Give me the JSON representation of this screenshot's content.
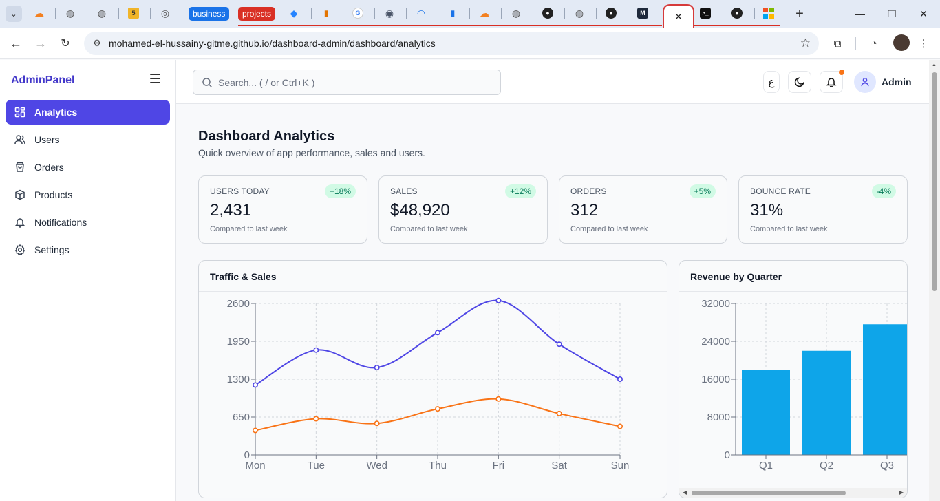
{
  "browser": {
    "tab_groups": [
      {
        "label": "business",
        "color": "#1a73e8"
      },
      {
        "label": "projects",
        "color": "#d93025"
      }
    ],
    "active_tab_close": "✕",
    "url": "mohamed-el-hussainy-gitme.github.io/dashboard-admin/dashboard/analytics"
  },
  "app": {
    "brand": "AdminPanel",
    "nav": [
      {
        "label": "Analytics",
        "icon": "grid-icon",
        "active": true
      },
      {
        "label": "Users",
        "icon": "users-icon"
      },
      {
        "label": "Orders",
        "icon": "shopping-bag-icon"
      },
      {
        "label": "Products",
        "icon": "box-icon"
      },
      {
        "label": "Notifications",
        "icon": "bell-icon"
      },
      {
        "label": "Settings",
        "icon": "gear-icon"
      }
    ],
    "search_placeholder": "Search... ( / or Ctrl+K )",
    "lang_button": "ع",
    "user_name": "Admin"
  },
  "page": {
    "title": "Dashboard Analytics",
    "subtitle": "Quick overview of app performance, sales and users."
  },
  "stats": [
    {
      "label": "USERS TODAY",
      "value": "2,431",
      "badge": "+18%",
      "note": "Compared to last week"
    },
    {
      "label": "SALES",
      "value": "$48,920",
      "badge": "+12%",
      "note": "Compared to last week"
    },
    {
      "label": "ORDERS",
      "value": "312",
      "badge": "+5%",
      "note": "Compared to last week"
    },
    {
      "label": "BOUNCE RATE",
      "value": "31%",
      "badge": "-4%",
      "note": "Compared to last week"
    }
  ],
  "colors": {
    "accent": "#4f46e5",
    "traffic": "#4f46e5",
    "sales": "#f97316",
    "bars": "#0ea5e9"
  },
  "chart_data": [
    {
      "type": "line",
      "title": "Traffic & Sales",
      "categories": [
        "Mon",
        "Tue",
        "Wed",
        "Thu",
        "Fri",
        "Sat",
        "Sun"
      ],
      "series": [
        {
          "values": [
            1200,
            1800,
            1500,
            2100,
            2650,
            1900,
            1300
          ],
          "color": "#4f46e5"
        },
        {
          "values": [
            420,
            620,
            540,
            790,
            960,
            710,
            490
          ],
          "color": "#f97316"
        }
      ],
      "yticks": [
        "0",
        "650",
        "1300",
        "1950",
        "2600"
      ],
      "ylim": [
        0,
        2600
      ],
      "grid": true
    },
    {
      "type": "bar",
      "title": "Revenue by Quarter",
      "categories": [
        "Q1",
        "Q2",
        "Q3"
      ],
      "values": [
        18000,
        22000,
        27600
      ],
      "yticks": [
        "0",
        "8000",
        "16000",
        "24000",
        "32000"
      ],
      "ylim": [
        0,
        32000
      ],
      "grid": true
    }
  ]
}
